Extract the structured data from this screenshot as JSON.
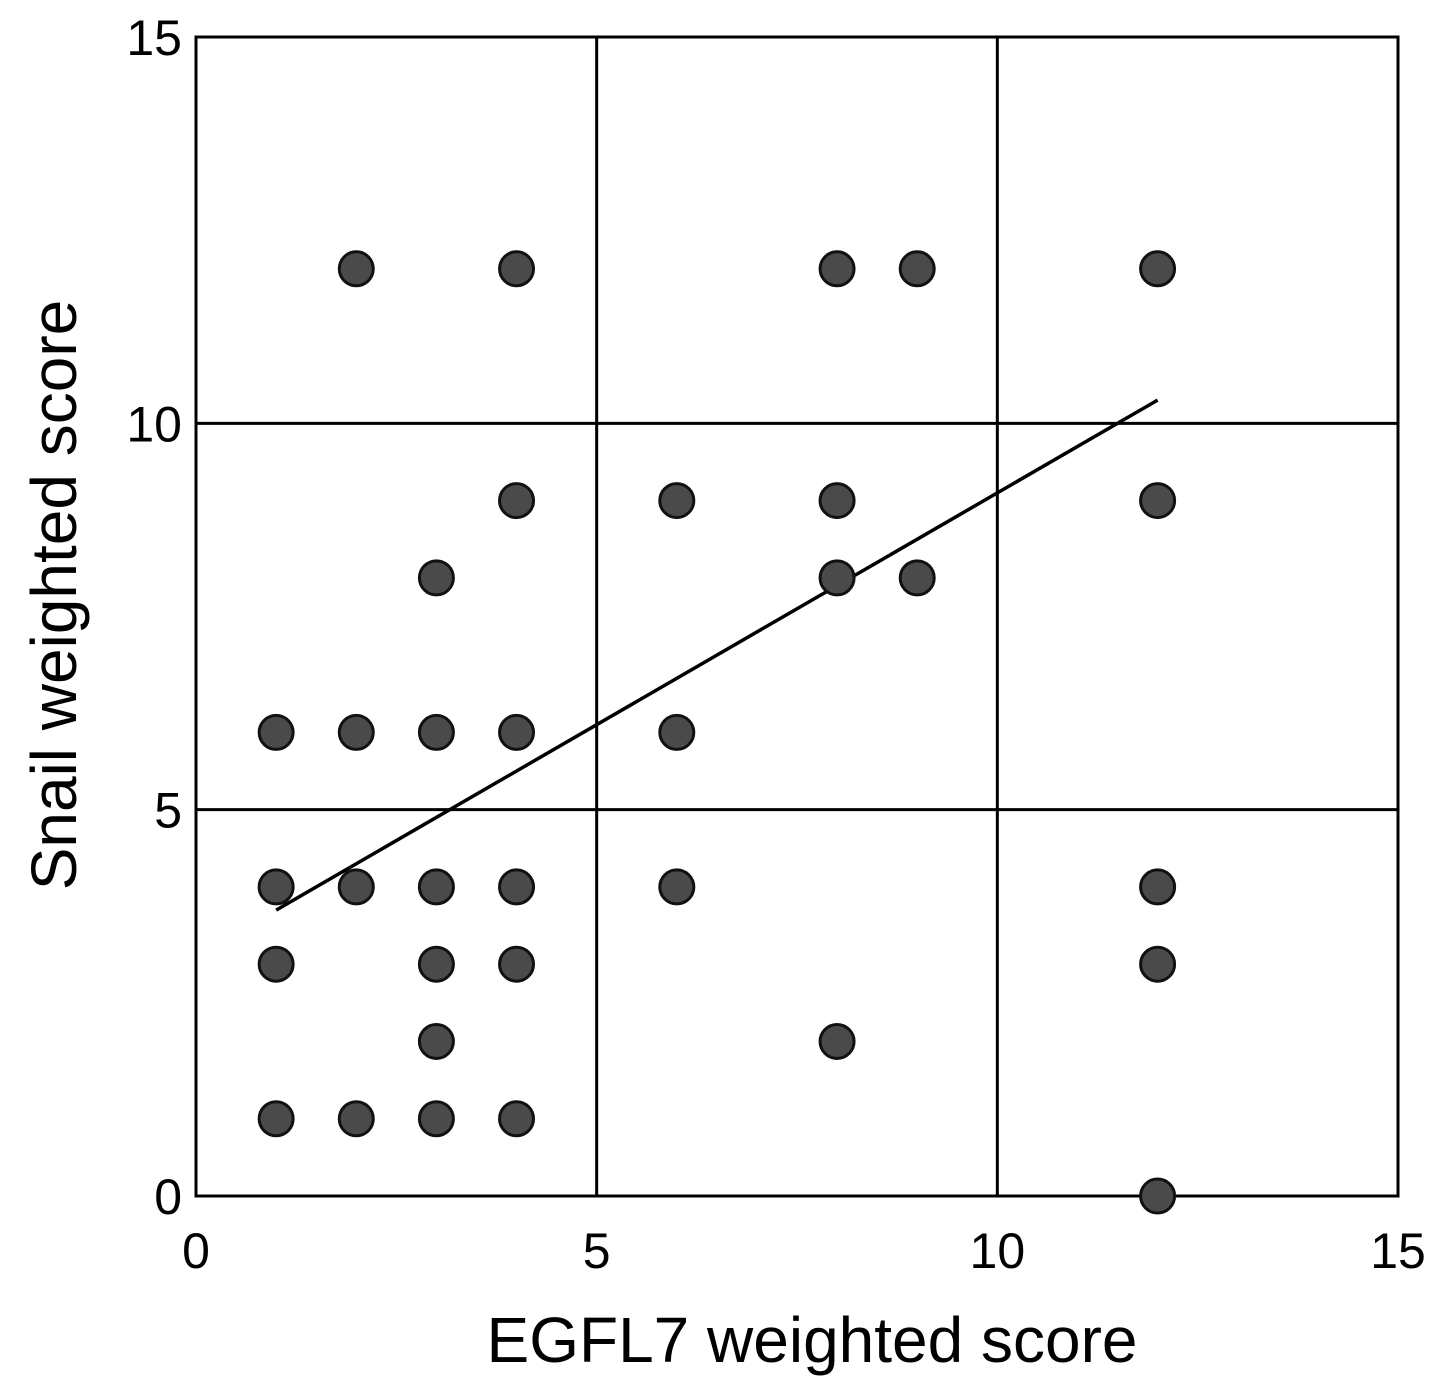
{
  "chart_data": {
    "type": "scatter",
    "title": "",
    "xlabel": "EGFL7 weighted score",
    "ylabel": "Snail weighted score",
    "xlim": [
      0,
      15
    ],
    "ylim": [
      0,
      15
    ],
    "xticks": [
      0,
      5,
      10,
      15
    ],
    "yticks": [
      0,
      5,
      10,
      15
    ],
    "grid": true,
    "grid_step": 5,
    "marker_color": "#4a4a4a",
    "marker_edge_color": "#111111",
    "points": [
      {
        "x": 2,
        "y": 12
      },
      {
        "x": 4,
        "y": 12
      },
      {
        "x": 8,
        "y": 12
      },
      {
        "x": 9,
        "y": 12
      },
      {
        "x": 12,
        "y": 12
      },
      {
        "x": 4,
        "y": 9
      },
      {
        "x": 6,
        "y": 9
      },
      {
        "x": 8,
        "y": 9
      },
      {
        "x": 12,
        "y": 9
      },
      {
        "x": 3,
        "y": 8
      },
      {
        "x": 8,
        "y": 8
      },
      {
        "x": 9,
        "y": 8
      },
      {
        "x": 1,
        "y": 6
      },
      {
        "x": 2,
        "y": 6
      },
      {
        "x": 3,
        "y": 6
      },
      {
        "x": 4,
        "y": 6
      },
      {
        "x": 6,
        "y": 6
      },
      {
        "x": 1,
        "y": 4
      },
      {
        "x": 2,
        "y": 4
      },
      {
        "x": 3,
        "y": 4
      },
      {
        "x": 4,
        "y": 4
      },
      {
        "x": 6,
        "y": 4
      },
      {
        "x": 12,
        "y": 4
      },
      {
        "x": 1,
        "y": 3
      },
      {
        "x": 3,
        "y": 3
      },
      {
        "x": 4,
        "y": 3
      },
      {
        "x": 12,
        "y": 3
      },
      {
        "x": 3,
        "y": 2
      },
      {
        "x": 8,
        "y": 2
      },
      {
        "x": 1,
        "y": 1
      },
      {
        "x": 2,
        "y": 1
      },
      {
        "x": 3,
        "y": 1
      },
      {
        "x": 4,
        "y": 1
      },
      {
        "x": 12,
        "y": 0
      }
    ],
    "trend_line": {
      "x": [
        1,
        12
      ],
      "y": [
        3.7,
        10.3
      ]
    }
  }
}
